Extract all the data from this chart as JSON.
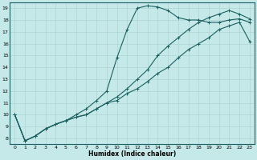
{
  "xlabel": "Humidex (Indice chaleur)",
  "bg_color": "#c5e8e8",
  "line_color": "#1a6060",
  "grid_color": "#afd4d4",
  "xlim": [
    -0.5,
    23.5
  ],
  "ylim": [
    7.5,
    19.5
  ],
  "xticks": [
    0,
    1,
    2,
    3,
    4,
    5,
    6,
    7,
    8,
    9,
    10,
    11,
    12,
    13,
    14,
    15,
    16,
    17,
    18,
    19,
    20,
    21,
    22,
    23
  ],
  "yticks": [
    8,
    9,
    10,
    11,
    12,
    13,
    14,
    15,
    16,
    17,
    18,
    19
  ],
  "line1_x": [
    0,
    1,
    2,
    3,
    4,
    5,
    6,
    7,
    8,
    9,
    10,
    11,
    12,
    13,
    14,
    15,
    16,
    17,
    18,
    19,
    20,
    21,
    22,
    23
  ],
  "line1_y": [
    10.0,
    7.8,
    8.2,
    8.8,
    9.2,
    9.5,
    9.8,
    10.0,
    10.5,
    11.0,
    11.2,
    11.8,
    12.2,
    12.8,
    13.5,
    14.0,
    14.8,
    15.5,
    16.0,
    16.5,
    17.2,
    17.5,
    17.8,
    16.2
  ],
  "line2_x": [
    0,
    1,
    2,
    3,
    4,
    5,
    6,
    7,
    8,
    9,
    10,
    11,
    12,
    13,
    14,
    15,
    16,
    17,
    18,
    19,
    20,
    21,
    22,
    23
  ],
  "line2_y": [
    10.0,
    7.8,
    8.2,
    8.8,
    9.2,
    9.5,
    10.0,
    10.5,
    11.2,
    12.0,
    14.8,
    17.2,
    19.0,
    19.2,
    19.1,
    18.8,
    18.2,
    18.0,
    18.0,
    17.8,
    17.8,
    18.0,
    18.1,
    17.8
  ],
  "line3_x": [
    0,
    1,
    2,
    3,
    4,
    5,
    6,
    7,
    8,
    9,
    10,
    11,
    12,
    13,
    14,
    15,
    16,
    17,
    18,
    19,
    20,
    21,
    22,
    23
  ],
  "line3_y": [
    10.0,
    7.8,
    8.2,
    8.8,
    9.2,
    9.5,
    9.8,
    10.0,
    10.5,
    11.0,
    11.5,
    12.2,
    13.0,
    13.8,
    15.0,
    15.8,
    16.5,
    17.2,
    17.8,
    18.2,
    18.5,
    18.8,
    18.5,
    18.1
  ]
}
